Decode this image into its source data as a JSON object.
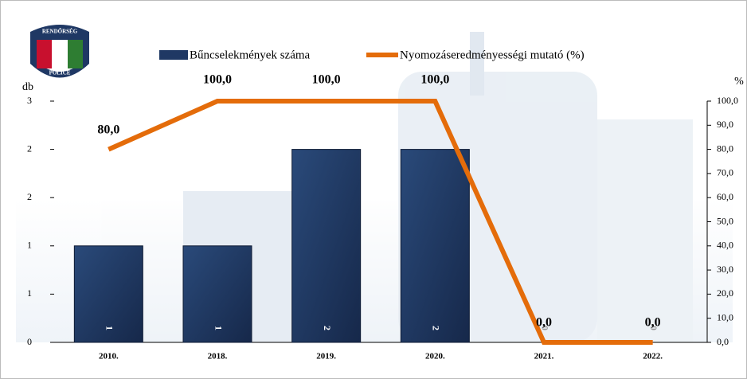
{
  "logo": {
    "top": "RENDŐRSÉG",
    "bottom": "POLICE"
  },
  "chart_data": {
    "type": "bar-line",
    "y_label": "db",
    "y2_label": "%",
    "categories": [
      "2010.",
      "2018.",
      "2019.",
      "2020.",
      "2021.",
      "2022."
    ],
    "series": [
      {
        "name": "Bűncselekmények száma",
        "type": "bar",
        "color": "#1f3864",
        "values": [
          1,
          1,
          2,
          2,
          0,
          0
        ]
      },
      {
        "name": "Nyomozáseredményességi mutató (%)",
        "type": "line",
        "axis": "y2",
        "color": "#e46c0a",
        "values": [
          80,
          100,
          100,
          100,
          0,
          0
        ],
        "value_labels": [
          "80,0",
          "100,0",
          "100,0",
          "100,0",
          "0,0",
          "0,0"
        ]
      }
    ],
    "ylim": [
      0,
      2.5
    ],
    "yticks": [
      0,
      {
        "value": 0.5,
        "label": "1"
      },
      1,
      {
        "value": 1.5,
        "label": "2"
      },
      2,
      {
        "value": 2.5,
        "label": "3"
      }
    ],
    "y2lim": [
      0,
      100
    ],
    "y2ticks": [
      {
        "value": 0,
        "label": "0,0"
      },
      {
        "value": 10,
        "label": "10,0"
      },
      {
        "value": 20,
        "label": "20,0"
      },
      {
        "value": 30,
        "label": "30,0"
      },
      {
        "value": 40,
        "label": "40,0"
      },
      {
        "value": 50,
        "label": "50,0"
      },
      {
        "value": 60,
        "label": "60,0"
      },
      {
        "value": 70,
        "label": "70,0"
      },
      {
        "value": 80,
        "label": "80,0"
      },
      {
        "value": 90,
        "label": "90,0"
      },
      {
        "value": 100,
        "label": "100,0"
      }
    ],
    "legend": "top"
  }
}
